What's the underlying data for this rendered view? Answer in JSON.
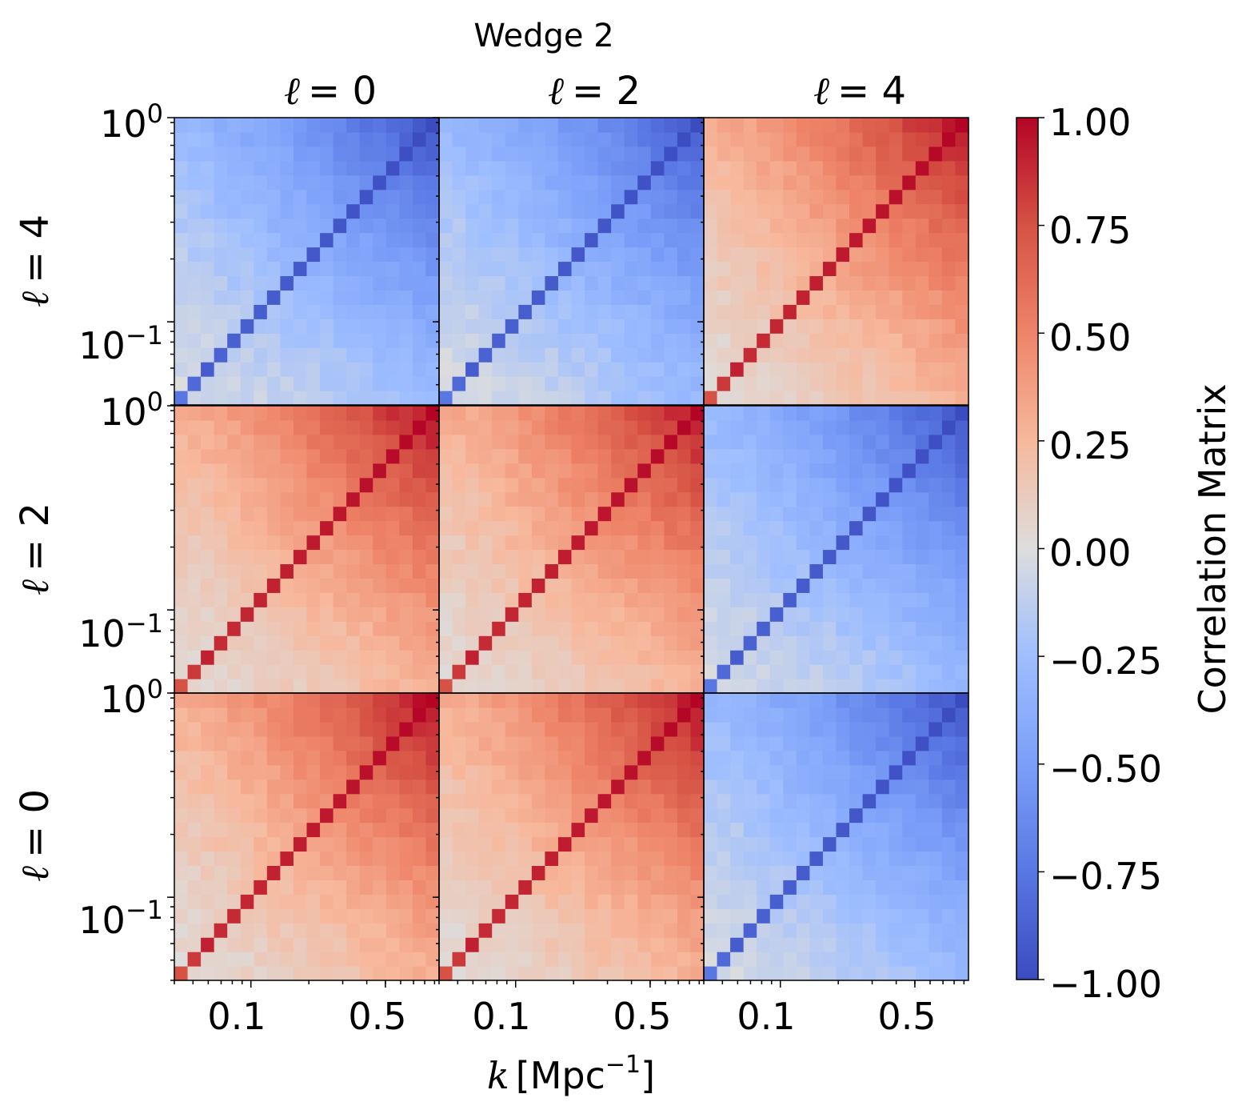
{
  "chart_data": {
    "type": "heatmap",
    "title": "Wedge 2",
    "xlabel_var": "k",
    "xlabel_unit": "[Mpc",
    "xlabel_exp": "−1",
    "xlabel_close": "]",
    "column_titles": [
      {
        "sym": "ℓ",
        "eq": "= 0"
      },
      {
        "sym": "ℓ",
        "eq": "= 2"
      },
      {
        "sym": "ℓ",
        "eq": "= 4"
      }
    ],
    "row_labels": [
      {
        "sym": "ℓ",
        "eq": "= 4"
      },
      {
        "sym": "ℓ",
        "eq": "= 2"
      },
      {
        "sym": "ℓ",
        "eq": "= 0"
      }
    ],
    "y_tick_labels": {
      "top": {
        "base": "10",
        "exp": "0"
      },
      "lower": {
        "base": "10",
        "exp": "−1"
      }
    },
    "x_tick_labels": [
      "0.1",
      "0.5"
    ],
    "k_range": [
      0.04,
      0.95
    ],
    "n_bins": 20,
    "grid": false,
    "legend": "none",
    "block_signs": [
      [
        -1,
        -1,
        1
      ],
      [
        1,
        1,
        -1
      ],
      [
        1,
        1,
        -1
      ]
    ],
    "block_strength": [
      [
        0.92,
        0.85,
        0.95
      ],
      [
        0.95,
        0.92,
        0.9
      ],
      [
        0.98,
        0.95,
        0.92
      ]
    ],
    "colorbar": {
      "label": "Correlation Matrix",
      "vmin": -1.0,
      "vmax": 1.0,
      "ticks": [
        "1.00",
        "0.75",
        "0.50",
        "0.25",
        "0.00",
        "−0.25",
        "−0.50",
        "−0.75",
        "−1.00"
      ],
      "colormap": "coolwarm"
    },
    "colors": {
      "low": "#3b4cc0",
      "mid": "#dddddd",
      "high": "#b40426"
    }
  }
}
